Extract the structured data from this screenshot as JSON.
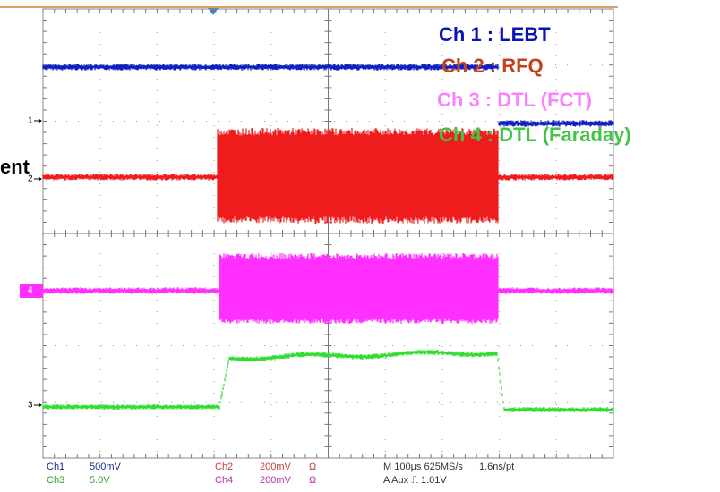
{
  "legend": [
    "Ch 1 : LEBT",
    "Ch 2 : RFQ",
    "Ch 3 : DTL (FCT)",
    "Ch 4 : DTL (Faraday)"
  ],
  "cut_label": "ent",
  "channel_markers": [
    "1",
    "2",
    "4",
    "3"
  ],
  "readout": {
    "rows": [
      [
        "Ch1",
        "500mV",
        "Ch2",
        "200mV",
        "Ω",
        "M 100μs 625MS/s",
        "1.6ns/pt"
      ],
      [
        "Ch3",
        "5.0V",
        "Ch4",
        "200mV",
        "Ω",
        "A Aux ⎍ 1.01V"
      ]
    ]
  }
}
